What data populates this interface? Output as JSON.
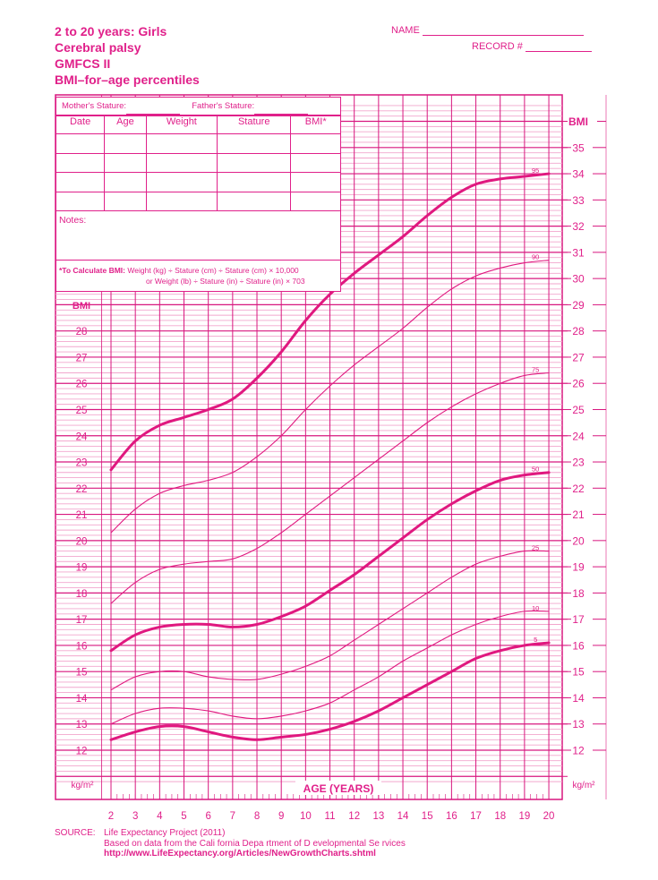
{
  "header": {
    "title_lines": [
      "2 to 20 years: Girls",
      "Cerebral palsy",
      "GMFCS II",
      "BMI–for–age percentiles"
    ],
    "name_label": "NAME",
    "record_label": "RECORD #"
  },
  "form": {
    "mothers_stature_label": "Mother's Stature:",
    "fathers_stature_label": "Father's Stature:",
    "columns": [
      "Date",
      "Age",
      "Weight",
      "Stature",
      "BMI*"
    ],
    "empty_rows": 4,
    "notes_label": "Notes:",
    "calc_label": "*To Calculate BMI:",
    "calc_line1": "Weight (kg) ÷ Stature (cm) ÷ Stature (cm) × 10,000",
    "calc_line2": "or Weight (lb) ÷ Stature (in) ÷ Stature (in) × 703"
  },
  "axis": {
    "left_title": "BMI",
    "right_title": "BMI",
    "unit_left": "kg/m²",
    "unit_right": "kg/m²",
    "x_title": "AGE (YEARS)"
  },
  "source": {
    "label": "SOURCE:",
    "line1": "Life Expectancy Project (2011)",
    "line2": "Based on data from the Cali   fornia Depa rtment of D evelopmental Se rvices",
    "line3": "http://www.LifeExpectancy.org/Articles/NewGrowthCharts.shtml"
  },
  "colors": {
    "primary": "#e0208a",
    "grid_major": "#d8177f",
    "grid_minor": "#f2a6cd"
  },
  "chart_data": {
    "type": "line",
    "title": "2 to 20 years: Girls — Cerebral palsy GMFCS II — BMI-for-age percentiles",
    "xlabel": "AGE (YEARS)",
    "ylabel": "BMI (kg/m²)",
    "xlim": [
      2,
      20
    ],
    "ylim": [
      12,
      35
    ],
    "grid": true,
    "x": [
      2,
      3,
      4,
      5,
      6,
      7,
      8,
      9,
      10,
      11,
      12,
      13,
      14,
      15,
      16,
      17,
      18,
      19,
      20
    ],
    "x_tick_labels": [
      "2",
      "3",
      "4",
      "5",
      "6",
      "7",
      "8",
      "9",
      "10",
      "11",
      "12",
      "13",
      "14",
      "15",
      "16",
      "17",
      "18",
      "19",
      "20"
    ],
    "y_ticks_right": [
      12,
      13,
      14,
      15,
      16,
      17,
      18,
      19,
      20,
      21,
      22,
      23,
      24,
      25,
      26,
      27,
      28,
      29,
      30,
      31,
      32,
      33,
      34,
      35
    ],
    "y_ticks_left": [
      12,
      13,
      14,
      15,
      16,
      17,
      18,
      19,
      20,
      21,
      22,
      23,
      24,
      25,
      26,
      27,
      28
    ],
    "series": [
      {
        "name": "95",
        "bold": true,
        "values": [
          22.7,
          23.8,
          24.4,
          24.7,
          25.0,
          25.4,
          26.2,
          27.2,
          28.4,
          29.4,
          30.2,
          30.9,
          31.6,
          32.4,
          33.1,
          33.6,
          33.8,
          33.9,
          34.0
        ]
      },
      {
        "name": "90",
        "bold": false,
        "values": [
          20.3,
          21.2,
          21.8,
          22.1,
          22.3,
          22.6,
          23.2,
          24.0,
          25.0,
          25.9,
          26.7,
          27.4,
          28.1,
          28.9,
          29.6,
          30.1,
          30.4,
          30.6,
          30.7
        ]
      },
      {
        "name": "75",
        "bold": false,
        "values": [
          17.6,
          18.4,
          18.9,
          19.1,
          19.2,
          19.3,
          19.7,
          20.3,
          21.0,
          21.7,
          22.4,
          23.1,
          23.8,
          24.5,
          25.1,
          25.6,
          26.0,
          26.3,
          26.4
        ]
      },
      {
        "name": "50",
        "bold": true,
        "values": [
          15.8,
          16.4,
          16.7,
          16.8,
          16.8,
          16.7,
          16.8,
          17.1,
          17.5,
          18.1,
          18.7,
          19.4,
          20.1,
          20.8,
          21.4,
          21.9,
          22.3,
          22.5,
          22.6
        ]
      },
      {
        "name": "25",
        "bold": false,
        "values": [
          14.3,
          14.8,
          15.0,
          15.0,
          14.8,
          14.7,
          14.7,
          14.9,
          15.2,
          15.6,
          16.2,
          16.8,
          17.4,
          18.0,
          18.6,
          19.1,
          19.4,
          19.6,
          19.6
        ]
      },
      {
        "name": "10",
        "bold": false,
        "values": [
          13.0,
          13.4,
          13.6,
          13.6,
          13.5,
          13.3,
          13.2,
          13.3,
          13.5,
          13.8,
          14.3,
          14.8,
          15.4,
          15.9,
          16.4,
          16.8,
          17.1,
          17.3,
          17.3
        ]
      },
      {
        "name": "5",
        "bold": true,
        "values": [
          12.4,
          12.7,
          12.9,
          12.9,
          12.7,
          12.5,
          12.4,
          12.5,
          12.6,
          12.8,
          13.1,
          13.5,
          14.0,
          14.5,
          15.0,
          15.5,
          15.8,
          16.0,
          16.1
        ]
      }
    ]
  }
}
